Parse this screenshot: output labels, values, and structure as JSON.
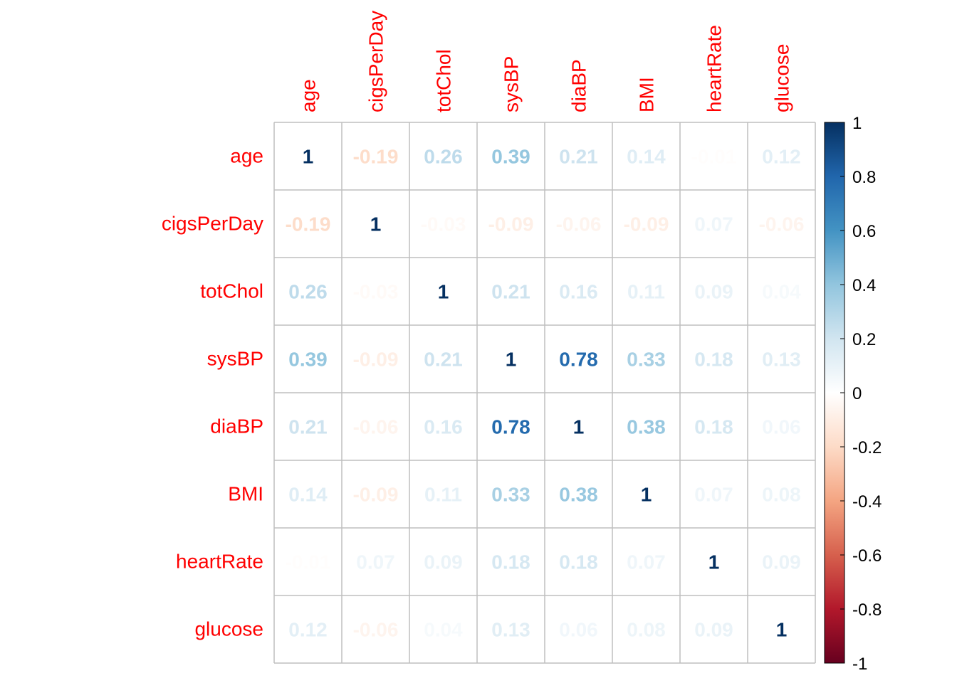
{
  "chart_data": {
    "type": "heatmap",
    "title": "",
    "variables": [
      "age",
      "cigsPerDay",
      "totChol",
      "sysBP",
      "diaBP",
      "BMI",
      "heartRate",
      "glucose"
    ],
    "matrix": [
      [
        1,
        -0.19,
        0.26,
        0.39,
        0.21,
        0.14,
        -0.01,
        0.12
      ],
      [
        -0.19,
        1,
        -0.03,
        -0.09,
        -0.06,
        -0.09,
        0.07,
        -0.06
      ],
      [
        0.26,
        -0.03,
        1,
        0.21,
        0.16,
        0.11,
        0.09,
        0.04
      ],
      [
        0.39,
        -0.09,
        0.21,
        1,
        0.78,
        0.33,
        0.18,
        0.13
      ],
      [
        0.21,
        -0.06,
        0.16,
        0.78,
        1,
        0.38,
        0.18,
        0.06
      ],
      [
        0.14,
        -0.09,
        0.11,
        0.33,
        0.38,
        1,
        0.07,
        0.08
      ],
      [
        -0.01,
        0.07,
        0.09,
        0.18,
        0.18,
        0.07,
        1,
        0.09
      ],
      [
        0.12,
        -0.06,
        0.04,
        0.13,
        0.06,
        0.08,
        0.09,
        1
      ]
    ],
    "color_range": [
      -1,
      1
    ],
    "colorbar_ticks": [
      "1",
      "0.8",
      "0.6",
      "0.4",
      "0.2",
      "0",
      "-0.2",
      "-0.4",
      "-0.6",
      "-0.8",
      "-1"
    ],
    "colormap": {
      "negative_end": "#67001f",
      "positive_end": "#053061",
      "midpoint": "#ffffff"
    },
    "label_color": "#ff0000",
    "grid": true,
    "legend_placement": "right"
  }
}
